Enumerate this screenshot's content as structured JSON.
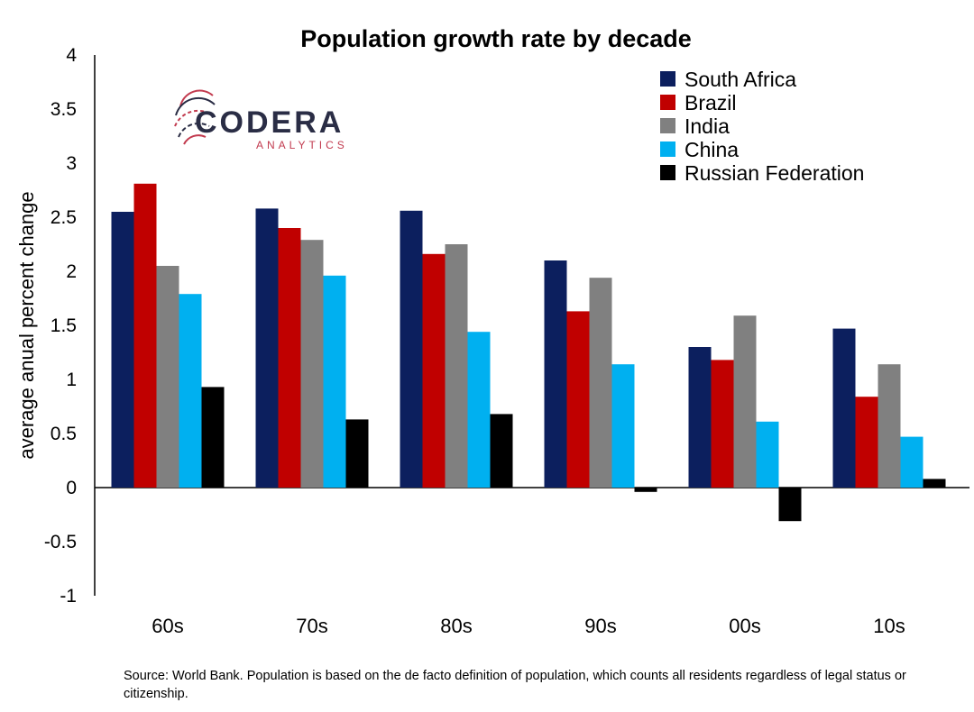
{
  "chart_data": {
    "type": "bar",
    "title": "Population growth rate by decade",
    "xlabel": "",
    "ylabel": "average anual percent change",
    "categories": [
      "60s",
      "70s",
      "80s",
      "90s",
      "00s",
      "10s"
    ],
    "ylim": [
      -1,
      4
    ],
    "yticks": [
      "4",
      "3.5",
      "3",
      "2.5",
      "2",
      "1.5",
      "1",
      "0.5",
      "0",
      "-0.5",
      "-1"
    ],
    "ytick_values": [
      4,
      3.5,
      3,
      2.5,
      2,
      1.5,
      1,
      0.5,
      0,
      -0.5,
      -1
    ],
    "grid": false,
    "legend_position": "top-right",
    "series": [
      {
        "name": "South Africa",
        "color": "#0c1f5e",
        "values": [
          2.55,
          2.58,
          2.56,
          2.1,
          1.3,
          1.47
        ]
      },
      {
        "name": "Brazil",
        "color": "#c00000",
        "values": [
          2.81,
          2.4,
          2.16,
          1.63,
          1.18,
          0.84
        ]
      },
      {
        "name": "India",
        "color": "#808080",
        "values": [
          2.05,
          2.29,
          2.25,
          1.94,
          1.59,
          1.14
        ]
      },
      {
        "name": "China",
        "color": "#00b0f0",
        "values": [
          1.79,
          1.96,
          1.44,
          1.14,
          0.61,
          0.47
        ]
      },
      {
        "name": "Russian Federation",
        "color": "#000000",
        "values": [
          0.93,
          0.63,
          0.68,
          -0.04,
          -0.31,
          0.08
        ]
      }
    ]
  },
  "logo": {
    "main": "CODERA",
    "sub": "ANALYTICS",
    "accent_color": "#c23b4f"
  },
  "source": "Source: World Bank. Population is based on the de facto definition of population, which counts all residents regardless of legal status or citizenship."
}
